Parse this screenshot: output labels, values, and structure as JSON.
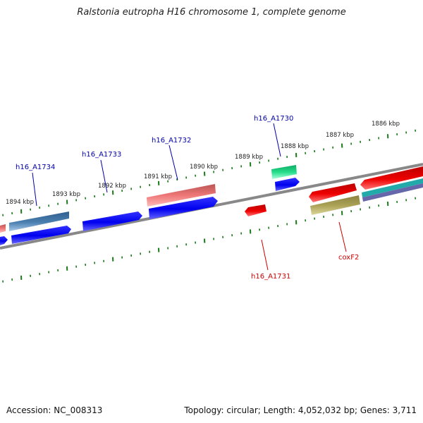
{
  "title": "Ralstonia eutropha H16 chromosome 1, complete genome",
  "footer": {
    "accession": "Accession: NC_008313",
    "summary": "Topology: circular; Length: 4,052,032 bp; Genes: 3,711"
  },
  "colors": {
    "backbone": "#888888",
    "tick": "#1a7a1a",
    "label_forward": "#0000aa",
    "label_reverse": "#cc0000"
  },
  "scale_labels": [
    "1894 kbp",
    "1893 kbp",
    "1892 kbp",
    "1891 kbp",
    "1890 kbp",
    "1889 kbp",
    "1888 kbp",
    "1887 kbp",
    "1886 kbp"
  ],
  "gene_labels": [
    "h16_A1734",
    "h16_A1733",
    "h16_A1732",
    "h16_A1730",
    "h16_A1731",
    "coxF2"
  ],
  "features": [
    {
      "name": "gene-steelblue",
      "color": "#4a7fb0"
    },
    {
      "name": "cds-blue",
      "color": "#0000ee"
    },
    {
      "name": "gene-salmon",
      "color": "#ee7777"
    },
    {
      "name": "gene-springgreen",
      "color": "#22dd88"
    },
    {
      "name": "cds-red",
      "color": "#ee0000"
    },
    {
      "name": "gene-olive",
      "color": "#aaa155"
    },
    {
      "name": "gene-teal",
      "color": "#22aaaa"
    },
    {
      "name": "gene-slate",
      "color": "#6666aa"
    }
  ]
}
